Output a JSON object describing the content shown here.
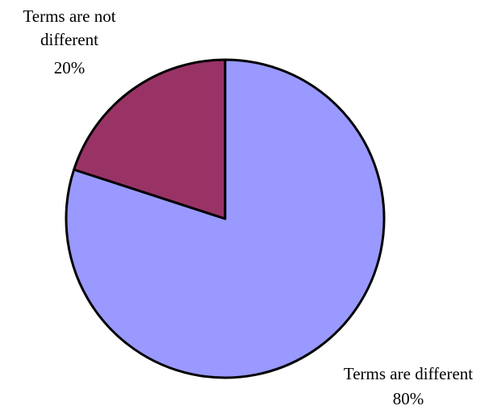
{
  "chart_data": {
    "type": "pie",
    "title": "",
    "series": [
      {
        "values": [
          80,
          20
        ]
      }
    ],
    "slices": [
      {
        "key": "different",
        "label_lines": [
          "Terms are different"
        ],
        "value": 80,
        "percent_label": "80%",
        "color": "#9999FF"
      },
      {
        "key": "not-different",
        "label_lines": [
          "Terms are not",
          "different"
        ],
        "value": 20,
        "percent_label": "20%",
        "color": "#993366"
      }
    ],
    "legend": "none",
    "start_angle_deg": 0,
    "direction": "clockwise"
  }
}
